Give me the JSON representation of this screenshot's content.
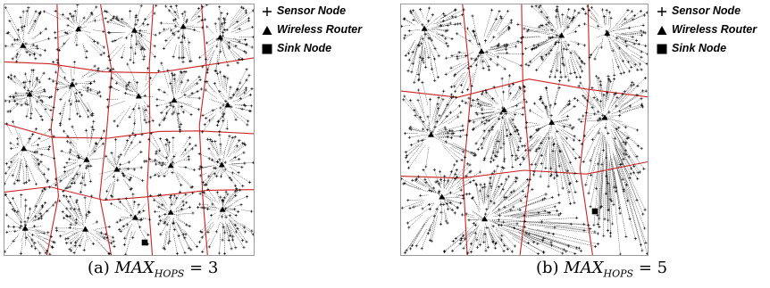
{
  "legend": {
    "sensor_node": "Sensor Node",
    "wireless_router": "Wireless Router",
    "sink_node": "Sink Node"
  },
  "colors": {
    "cluster_boundary": "#cc2222",
    "edge": "#1a1a1a",
    "node": "#000000"
  },
  "panels": [
    {
      "id": "a",
      "caption_prefix": "(a) ",
      "caption_var": "MAX",
      "caption_sub": "HOPS",
      "caption_suffix": " = 3",
      "max_hops": 3,
      "seed": 17
    },
    {
      "id": "b",
      "caption_prefix": "(b) ",
      "caption_var": "MAX",
      "caption_sub": "HOPS",
      "caption_suffix": " = 5",
      "max_hops": 5,
      "seed": 53
    }
  ]
}
